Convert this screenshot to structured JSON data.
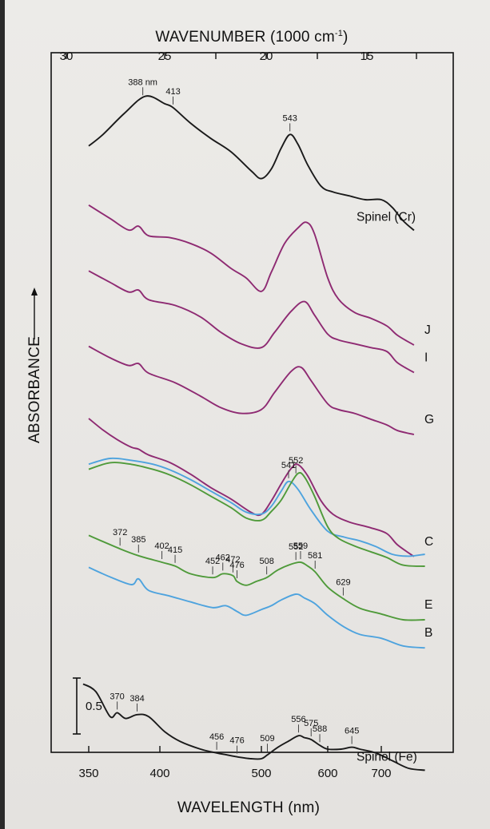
{
  "chart_data": {
    "type": "line",
    "top_axis": {
      "title_main": "WAVENUMBER (1000 cm",
      "title_sup": "-1",
      "title_end": ")",
      "ticks": [
        {
          "value": 30,
          "label": "30"
        },
        {
          "value": 25,
          "label": "25"
        },
        {
          "value": 20,
          "label": "20"
        },
        {
          "value": 15,
          "label": "15"
        }
      ]
    },
    "bottom_axis": {
      "title": "WAVELENGTH (nm)",
      "range": [
        345,
        785
      ],
      "ticks": [
        {
          "value": 350,
          "label": "350"
        },
        {
          "value": 400,
          "label": "400"
        },
        {
          "value": 500,
          "label": "500"
        },
        {
          "value": 600,
          "label": "600"
        },
        {
          "value": 700,
          "label": "700"
        }
      ]
    },
    "y_axis": {
      "title": "ABSORBANCE"
    },
    "scale_bar": {
      "label": "0.5",
      "value": 0.5
    },
    "colors": {
      "black": "#1a1a1a",
      "purple": "#8e2a72",
      "green": "#4f9a3a",
      "blue": "#4ea3de"
    },
    "series": [
      {
        "name": "Spinel (Cr)",
        "color": "black",
        "points": [
          [
            350,
            0.15
          ],
          [
            360,
            0.45
          ],
          [
            375,
            1.0
          ],
          [
            390,
            1.45
          ],
          [
            405,
            1.25
          ],
          [
            413,
            1.15
          ],
          [
            430,
            0.75
          ],
          [
            450,
            0.35
          ],
          [
            470,
            0.0
          ],
          [
            490,
            -0.5
          ],
          [
            500,
            -0.7
          ],
          [
            515,
            -0.45
          ],
          [
            530,
            0.1
          ],
          [
            543,
            0.45
          ],
          [
            555,
            0.2
          ],
          [
            570,
            -0.35
          ],
          [
            590,
            -0.9
          ],
          [
            610,
            -1.05
          ],
          [
            640,
            -1.15
          ],
          [
            670,
            -1.25
          ],
          [
            700,
            -1.25
          ],
          [
            720,
            -1.45
          ],
          [
            740,
            -1.8
          ],
          [
            760,
            -2.05
          ]
        ]
      },
      {
        "name": "J",
        "color": "purple",
        "points": [
          [
            350,
            0.9
          ],
          [
            365,
            0.55
          ],
          [
            378,
            0.25
          ],
          [
            385,
            0.35
          ],
          [
            392,
            0.1
          ],
          [
            410,
            0.05
          ],
          [
            430,
            -0.1
          ],
          [
            450,
            -0.35
          ],
          [
            470,
            -0.75
          ],
          [
            485,
            -1.0
          ],
          [
            500,
            -1.35
          ],
          [
            515,
            -0.85
          ],
          [
            535,
            -0.1
          ],
          [
            555,
            0.3
          ],
          [
            568,
            0.45
          ],
          [
            580,
            0.15
          ],
          [
            600,
            -1.0
          ],
          [
            620,
            -1.55
          ],
          [
            650,
            -1.9
          ],
          [
            680,
            -2.05
          ],
          [
            710,
            -2.25
          ],
          [
            730,
            -2.5
          ],
          [
            760,
            -2.75
          ]
        ]
      },
      {
        "name": "I",
        "color": "purple",
        "points": [
          [
            350,
            0.85
          ],
          [
            365,
            0.55
          ],
          [
            378,
            0.3
          ],
          [
            385,
            0.35
          ],
          [
            392,
            0.1
          ],
          [
            415,
            -0.05
          ],
          [
            440,
            -0.35
          ],
          [
            460,
            -0.75
          ],
          [
            480,
            -1.05
          ],
          [
            500,
            -1.15
          ],
          [
            520,
            -0.75
          ],
          [
            545,
            -0.2
          ],
          [
            565,
            0.05
          ],
          [
            580,
            -0.3
          ],
          [
            600,
            -0.8
          ],
          [
            620,
            -0.95
          ],
          [
            650,
            -1.05
          ],
          [
            680,
            -1.15
          ],
          [
            710,
            -1.25
          ],
          [
            730,
            -1.55
          ],
          [
            760,
            -1.8
          ]
        ]
      },
      {
        "name": "G",
        "color": "purple",
        "points": [
          [
            350,
            0.55
          ],
          [
            365,
            0.25
          ],
          [
            378,
            0.05
          ],
          [
            385,
            0.1
          ],
          [
            392,
            -0.15
          ],
          [
            415,
            -0.4
          ],
          [
            440,
            -0.75
          ],
          [
            460,
            -1.05
          ],
          [
            480,
            -1.2
          ],
          [
            500,
            -1.1
          ],
          [
            520,
            -0.65
          ],
          [
            545,
            -0.1
          ],
          [
            560,
            0.0
          ],
          [
            575,
            -0.35
          ],
          [
            600,
            -0.95
          ],
          [
            620,
            -1.1
          ],
          [
            650,
            -1.2
          ],
          [
            680,
            -1.35
          ],
          [
            710,
            -1.5
          ],
          [
            730,
            -1.65
          ],
          [
            760,
            -1.75
          ]
        ]
      },
      {
        "name": "C",
        "color": "purple",
        "points": [
          [
            350,
            0.75
          ],
          [
            360,
            0.45
          ],
          [
            370,
            0.2
          ],
          [
            380,
            0.0
          ],
          [
            385,
            -0.05
          ],
          [
            392,
            -0.2
          ],
          [
            410,
            -0.4
          ],
          [
            430,
            -0.7
          ],
          [
            450,
            -1.05
          ],
          [
            470,
            -1.35
          ],
          [
            490,
            -1.7
          ],
          [
            500,
            -1.75
          ],
          [
            515,
            -1.4
          ],
          [
            530,
            -0.95
          ],
          [
            545,
            -0.55
          ],
          [
            555,
            -0.45
          ],
          [
            570,
            -0.75
          ],
          [
            590,
            -1.4
          ],
          [
            610,
            -1.75
          ],
          [
            640,
            -1.95
          ],
          [
            680,
            -2.1
          ],
          [
            710,
            -2.25
          ],
          [
            730,
            -2.55
          ],
          [
            760,
            -2.85
          ]
        ]
      },
      {
        "name": "C-blue",
        "color": "blue",
        "points": [
          [
            350,
            0.35
          ],
          [
            365,
            0.5
          ],
          [
            380,
            0.45
          ],
          [
            395,
            0.35
          ],
          [
            410,
            0.2
          ],
          [
            430,
            -0.05
          ],
          [
            450,
            -0.35
          ],
          [
            470,
            -0.65
          ],
          [
            485,
            -0.9
          ],
          [
            500,
            -0.95
          ],
          [
            515,
            -0.75
          ],
          [
            530,
            -0.35
          ],
          [
            541,
            -0.1
          ],
          [
            555,
            -0.3
          ],
          [
            575,
            -0.85
          ],
          [
            600,
            -1.4
          ],
          [
            630,
            -1.55
          ],
          [
            660,
            -1.65
          ],
          [
            690,
            -1.8
          ],
          [
            720,
            -2.0
          ],
          [
            750,
            -2.05
          ],
          [
            780,
            -2.0
          ]
        ]
      },
      {
        "name": "C-green",
        "color": "green",
        "points": [
          [
            350,
            0.55
          ],
          [
            365,
            0.72
          ],
          [
            380,
            0.68
          ],
          [
            395,
            0.55
          ],
          [
            410,
            0.4
          ],
          [
            430,
            0.15
          ],
          [
            450,
            -0.15
          ],
          [
            470,
            -0.45
          ],
          [
            485,
            -0.72
          ],
          [
            500,
            -0.78
          ],
          [
            515,
            -0.55
          ],
          [
            530,
            -0.25
          ],
          [
            545,
            0.2
          ],
          [
            556,
            0.45
          ],
          [
            565,
            0.35
          ],
          [
            580,
            -0.15
          ],
          [
            600,
            -0.95
          ],
          [
            620,
            -1.25
          ],
          [
            650,
            -1.45
          ],
          [
            680,
            -1.6
          ],
          [
            710,
            -1.75
          ],
          [
            740,
            -1.95
          ],
          [
            780,
            -1.98
          ]
        ]
      },
      {
        "name": "E",
        "color": "green",
        "points": [
          [
            350,
            0.95
          ],
          [
            372,
            0.6
          ],
          [
            385,
            0.42
          ],
          [
            402,
            0.25
          ],
          [
            415,
            0.15
          ],
          [
            430,
            -0.05
          ],
          [
            452,
            -0.15
          ],
          [
            462,
            -0.05
          ],
          [
            472,
            -0.1
          ],
          [
            476,
            -0.25
          ],
          [
            485,
            -0.35
          ],
          [
            495,
            -0.25
          ],
          [
            508,
            -0.15
          ],
          [
            525,
            0.05
          ],
          [
            545,
            0.2
          ],
          [
            559,
            0.25
          ],
          [
            570,
            0.15
          ],
          [
            581,
            0.0
          ],
          [
            600,
            -0.4
          ],
          [
            629,
            -0.7
          ],
          [
            660,
            -0.95
          ],
          [
            700,
            -1.1
          ],
          [
            740,
            -1.25
          ],
          [
            780,
            -1.25
          ]
        ]
      },
      {
        "name": "B",
        "color": "blue",
        "points": [
          [
            350,
            0.7
          ],
          [
            365,
            0.45
          ],
          [
            380,
            0.25
          ],
          [
            385,
            0.4
          ],
          [
            392,
            0.1
          ],
          [
            410,
            -0.05
          ],
          [
            430,
            -0.2
          ],
          [
            452,
            -0.35
          ],
          [
            465,
            -0.3
          ],
          [
            476,
            -0.45
          ],
          [
            485,
            -0.55
          ],
          [
            500,
            -0.4
          ],
          [
            515,
            -0.3
          ],
          [
            530,
            -0.15
          ],
          [
            552,
            0.0
          ],
          [
            565,
            -0.1
          ],
          [
            581,
            -0.25
          ],
          [
            600,
            -0.55
          ],
          [
            630,
            -0.85
          ],
          [
            660,
            -1.05
          ],
          [
            700,
            -1.15
          ],
          [
            740,
            -1.35
          ],
          [
            780,
            -1.4
          ]
        ]
      },
      {
        "name": "Spinel (Fe)",
        "color": "black",
        "points": [
          [
            345,
            0.95
          ],
          [
            355,
            0.75
          ],
          [
            365,
            0.1
          ],
          [
            370,
            0.2
          ],
          [
            376,
            0.05
          ],
          [
            384,
            0.15
          ],
          [
            392,
            0.1
          ],
          [
            405,
            -0.3
          ],
          [
            420,
            -0.55
          ],
          [
            440,
            -0.75
          ],
          [
            456,
            -0.85
          ],
          [
            466,
            -0.9
          ],
          [
            476,
            -0.95
          ],
          [
            490,
            -1.0
          ],
          [
            500,
            -1.0
          ],
          [
            509,
            -0.9
          ],
          [
            525,
            -0.7
          ],
          [
            540,
            -0.55
          ],
          [
            556,
            -0.4
          ],
          [
            565,
            -0.45
          ],
          [
            575,
            -0.5
          ],
          [
            588,
            -0.65
          ],
          [
            600,
            -0.75
          ],
          [
            625,
            -0.75
          ],
          [
            645,
            -0.7
          ],
          [
            660,
            -0.75
          ],
          [
            690,
            -0.85
          ],
          [
            720,
            -1.05
          ],
          [
            750,
            -1.25
          ],
          [
            780,
            -1.3
          ]
        ]
      }
    ],
    "curve_labels": [
      {
        "text": "Spinel (Cr)",
        "series": 0
      },
      {
        "text": "J",
        "series": 1
      },
      {
        "text": "I",
        "series": 2
      },
      {
        "text": "G",
        "series": 3
      },
      {
        "text": "C",
        "series": 4
      },
      {
        "text": "E",
        "series": 7
      },
      {
        "text": "B",
        "series": 8
      },
      {
        "text": "Spinel (Fe)",
        "series": 9
      }
    ],
    "annotations": [
      {
        "label": "388 nm",
        "x": 388,
        "series": 0
      },
      {
        "label": "413",
        "x": 413,
        "series": 0
      },
      {
        "label": "543",
        "x": 543,
        "series": 0
      },
      {
        "label": "552",
        "x": 552,
        "series": 6
      },
      {
        "label": "541",
        "x": 541,
        "series": 5
      },
      {
        "label": "372",
        "x": 372,
        "series": 7
      },
      {
        "label": "385",
        "x": 385,
        "series": 7
      },
      {
        "label": "402",
        "x": 402,
        "series": 7
      },
      {
        "label": "415",
        "x": 415,
        "series": 7
      },
      {
        "label": "452",
        "x": 452,
        "series": 7
      },
      {
        "label": "462",
        "x": 462,
        "series": 7
      },
      {
        "label": "472",
        "x": 472,
        "series": 7
      },
      {
        "label": "476",
        "x": 476,
        "series": 7
      },
      {
        "label": "508",
        "x": 508,
        "series": 7
      },
      {
        "label": "552",
        "x": 552,
        "series": 7
      },
      {
        "label": "559",
        "x": 559,
        "series": 7
      },
      {
        "label": "581",
        "x": 581,
        "series": 7
      },
      {
        "label": "629",
        "x": 629,
        "series": 7
      },
      {
        "label": "370",
        "x": 370,
        "series": 9
      },
      {
        "label": "384",
        "x": 384,
        "series": 9
      },
      {
        "label": "456",
        "x": 456,
        "series": 9
      },
      {
        "label": "476",
        "x": 476,
        "series": 9
      },
      {
        "label": "509",
        "x": 509,
        "series": 9
      },
      {
        "label": "556",
        "x": 556,
        "series": 9
      },
      {
        "label": "575",
        "x": 575,
        "series": 9
      },
      {
        "label": "588",
        "x": 588,
        "series": 9
      },
      {
        "label": "645",
        "x": 645,
        "series": 9
      }
    ]
  }
}
